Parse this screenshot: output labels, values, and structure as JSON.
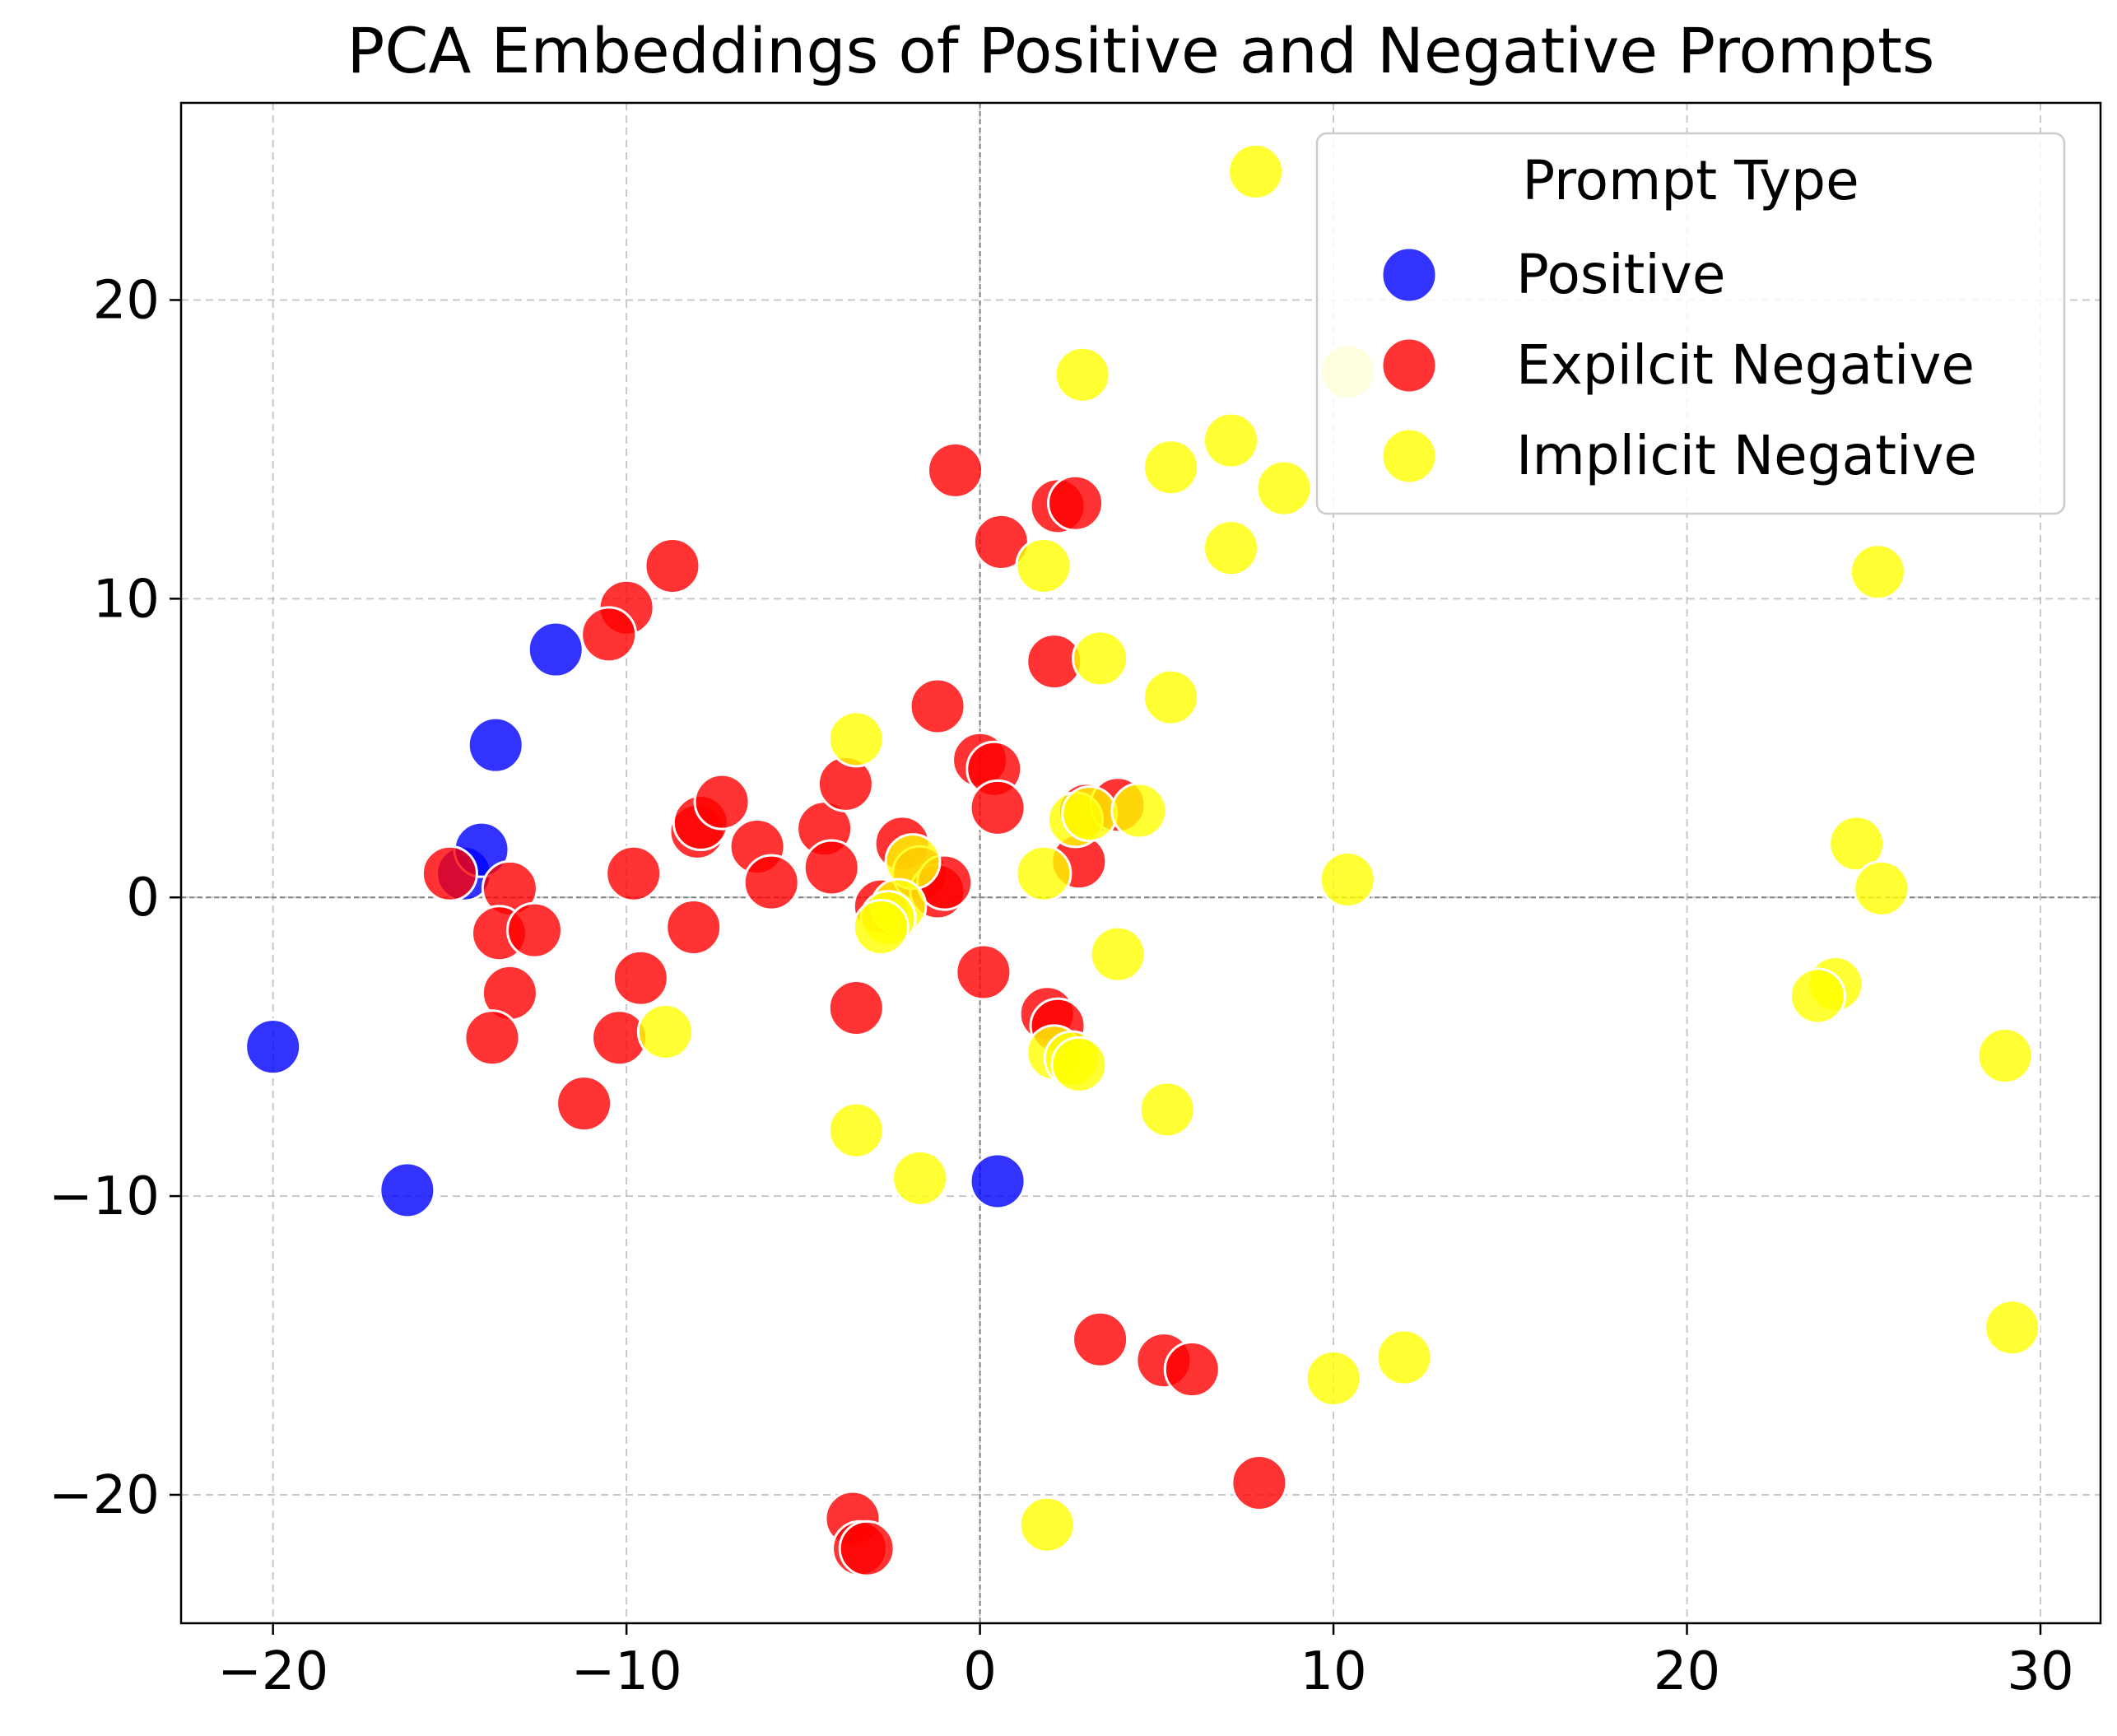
{
  "chart_data": {
    "type": "scatter",
    "title": "PCA Embeddings of Positive and Negative Prompts",
    "xlabel": "",
    "ylabel": "",
    "xlim": [
      -22.6,
      31.7
    ],
    "ylim": [
      -24.3,
      26.6
    ],
    "xticks": [
      -20,
      -10,
      0,
      10,
      20,
      30
    ],
    "yticks": [
      -20,
      -10,
      0,
      10,
      20
    ],
    "xtick_labels": [
      "−20",
      "−10",
      "0",
      "10",
      "20",
      "30"
    ],
    "ytick_labels": [
      "−20",
      "−10",
      "0",
      "10",
      "20"
    ],
    "grid": true,
    "reference_lines": {
      "x": 0,
      "y": 0
    },
    "legend": {
      "title": "Prompt Type",
      "placement": "top-right"
    },
    "series": [
      {
        "name": "Positive",
        "color": "#0000ff",
        "points": [
          [
            -20.0,
            -5.0
          ],
          [
            -16.2,
            -9.8
          ],
          [
            -14.6,
            0.8
          ],
          [
            -14.1,
            1.6
          ],
          [
            -13.7,
            5.1
          ],
          [
            -12.0,
            8.3
          ],
          [
            0.5,
            -9.5
          ]
        ]
      },
      {
        "name": "Expilcit Negative",
        "color": "#ff0000",
        "points": [
          [
            -15.0,
            0.8
          ],
          [
            -13.3,
            0.3
          ],
          [
            -13.6,
            -1.2
          ],
          [
            -12.6,
            -1.1
          ],
          [
            -13.3,
            -3.2
          ],
          [
            -13.8,
            -4.7
          ],
          [
            -11.2,
            -6.9
          ],
          [
            -10.0,
            9.7
          ],
          [
            -10.5,
            8.8
          ],
          [
            -8.7,
            11.1
          ],
          [
            -9.8,
            0.8
          ],
          [
            -9.6,
            -2.7
          ],
          [
            -10.2,
            -4.7
          ],
          [
            -8.1,
            -1.0
          ],
          [
            -8.0,
            2.2
          ],
          [
            -7.9,
            2.5
          ],
          [
            -7.3,
            3.2
          ],
          [
            -6.3,
            1.7
          ],
          [
            -5.9,
            0.5
          ],
          [
            -4.4,
            2.3
          ],
          [
            -4.2,
            1.0
          ],
          [
            -3.8,
            3.8
          ],
          [
            -3.5,
            -3.7
          ],
          [
            -3.6,
            -20.8
          ],
          [
            -3.4,
            -21.8
          ],
          [
            -3.2,
            -21.8
          ],
          [
            -2.8,
            -0.3
          ],
          [
            -2.2,
            1.8
          ],
          [
            -1.7,
            0.8
          ],
          [
            -1.2,
            0.2
          ],
          [
            -1.2,
            6.4
          ],
          [
            -1.0,
            0.5
          ],
          [
            -0.7,
            14.3
          ],
          [
            0.0,
            4.6
          ],
          [
            0.4,
            4.3
          ],
          [
            0.5,
            3.0
          ],
          [
            0.6,
            11.9
          ],
          [
            0.1,
            -2.5
          ],
          [
            1.9,
            -3.9
          ],
          [
            2.2,
            -4.3
          ],
          [
            2.1,
            7.9
          ],
          [
            2.2,
            13.1
          ],
          [
            2.7,
            13.2
          ],
          [
            2.8,
            1.2
          ],
          [
            3.0,
            2.9
          ],
          [
            3.4,
            -14.8
          ],
          [
            3.9,
            3.1
          ],
          [
            5.2,
            -15.5
          ],
          [
            6.0,
            -15.8
          ],
          [
            7.9,
            -19.6
          ]
        ]
      },
      {
        "name": "Implicit Negative",
        "color": "#ffff00",
        "points": [
          [
            7.8,
            24.3
          ],
          [
            10.4,
            17.6
          ],
          [
            2.9,
            17.5
          ],
          [
            7.1,
            15.3
          ],
          [
            5.4,
            14.4
          ],
          [
            8.6,
            13.7
          ],
          [
            7.1,
            11.7
          ],
          [
            1.8,
            11.1
          ],
          [
            25.4,
            10.9
          ],
          [
            3.4,
            8.0
          ],
          [
            5.4,
            6.7
          ],
          [
            -3.5,
            5.3
          ],
          [
            2.7,
            2.6
          ],
          [
            3.1,
            2.8
          ],
          [
            4.5,
            2.9
          ],
          [
            1.8,
            0.8
          ],
          [
            10.4,
            0.6
          ],
          [
            24.8,
            1.8
          ],
          [
            25.5,
            0.3
          ],
          [
            -1.9,
            1.2
          ],
          [
            -2.3,
            -0.3
          ],
          [
            -2.6,
            -0.7
          ],
          [
            -2.8,
            -1.0
          ],
          [
            3.9,
            -1.9
          ],
          [
            24.2,
            -2.9
          ],
          [
            23.7,
            -3.3
          ],
          [
            -8.9,
            -4.5
          ],
          [
            2.1,
            -5.2
          ],
          [
            2.6,
            -5.4
          ],
          [
            2.8,
            -5.6
          ],
          [
            29.0,
            -5.3
          ],
          [
            5.3,
            -7.1
          ],
          [
            -3.5,
            -7.8
          ],
          [
            -1.7,
            -9.4
          ],
          [
            12.0,
            -15.4
          ],
          [
            10.0,
            -16.1
          ],
          [
            29.2,
            -14.4
          ],
          [
            1.9,
            -21.0
          ]
        ]
      }
    ]
  }
}
